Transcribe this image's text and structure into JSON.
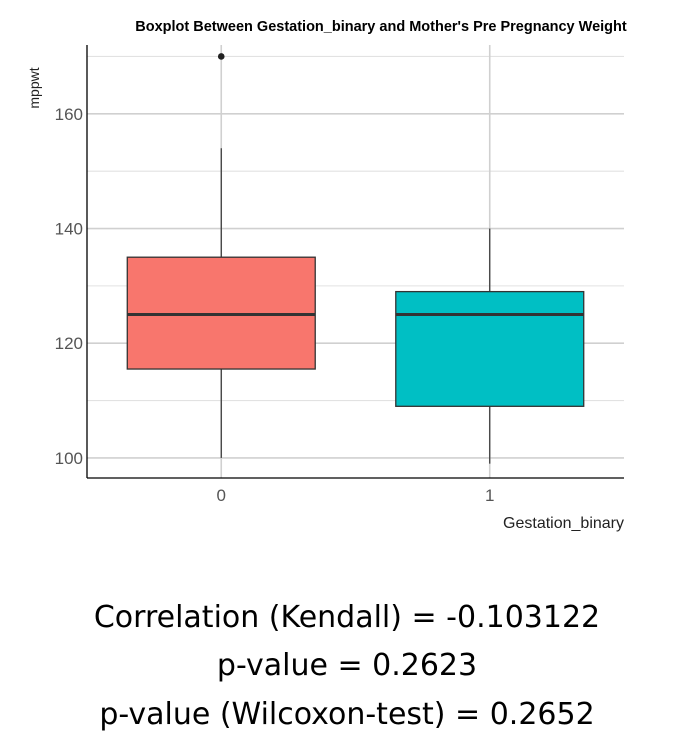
{
  "chart_data": {
    "type": "boxplot",
    "title": "Boxplot Between Gestation_binary and Mother's Pre Pregnancy Weight",
    "xlabel": "Gestation_binary",
    "ylabel": "mppwt",
    "categories": [
      "0",
      "1"
    ],
    "ylim": [
      96.5,
      172
    ],
    "yticks": [
      100,
      120,
      140,
      160
    ],
    "grid": true,
    "boxes": [
      {
        "category": "0",
        "whisker_low": 100,
        "q1": 115.5,
        "median": 125,
        "q3": 135,
        "whisker_high": 154,
        "outliers": [
          170
        ],
        "color": "#F8766D"
      },
      {
        "category": "1",
        "whisker_low": 99,
        "q1": 109,
        "median": 125,
        "q3": 129,
        "whisker_high": 140,
        "outliers": [],
        "color": "#00BFC4"
      }
    ]
  },
  "stats": {
    "line1": "Correlation (Kendall) = -0.103122",
    "line2": "p-value = 0.2623",
    "line3": "p-value (Wilcoxon-test) = 0.2652"
  }
}
